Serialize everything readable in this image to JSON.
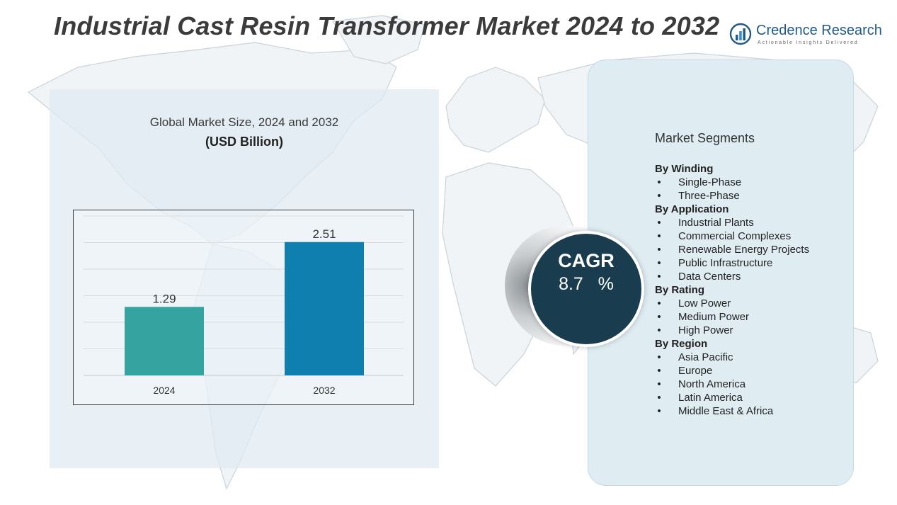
{
  "title": "Industrial Cast Resin Transformer Market 2024 to 2032",
  "logo": {
    "name": "Credence Research",
    "tagline": "Actionable Insights Delivered",
    "icon": "bar-chart-circle-icon"
  },
  "colors": {
    "bar_2024": "#35a3a0",
    "bar_2032": "#0f7fb0",
    "cagr_circle": "#193d4e",
    "panel": "#dfeaf3"
  },
  "chart_heading": "Global Market Size, 2024 and 2032",
  "chart_unit": "(USD Billion)",
  "chart_data": {
    "type": "bar",
    "title": "Global Market Size, 2024 and 2032",
    "ylabel": "(USD Billion)",
    "categories": [
      "2024",
      "2032"
    ],
    "values": [
      1.29,
      2.51
    ],
    "value_labels": [
      "1.29",
      "2.51"
    ],
    "ylim": [
      0,
      3.0
    ],
    "grid": true,
    "legend": "none"
  },
  "cagr": {
    "label": "CAGR",
    "value": "8.7   %"
  },
  "segments_title": "Market Segments",
  "segments": [
    {
      "heading": "By Winding",
      "items": [
        "Single-Phase",
        "Three-Phase"
      ]
    },
    {
      "heading": "By  Application",
      "items": [
        "Industrial Plants",
        "Commercial Complexes",
        "Renewable Energy Projects",
        "Public Infrastructure",
        "Data Centers"
      ]
    },
    {
      "heading": "By Rating",
      "items": [
        "Low Power",
        "Medium Power",
        "High Power"
      ]
    },
    {
      "heading": "By Region",
      "items": [
        "Asia Pacific",
        "Europe",
        "North America",
        "Latin America",
        "Middle East & Africa"
      ]
    }
  ]
}
